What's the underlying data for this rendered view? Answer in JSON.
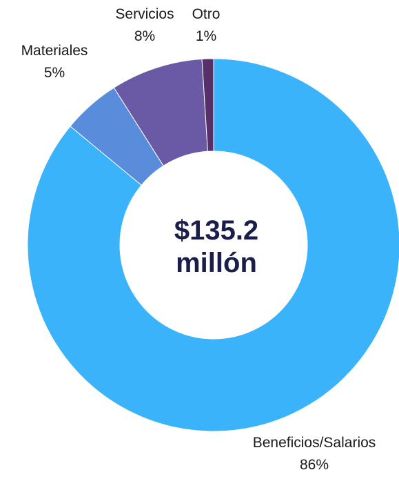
{
  "chart_data": {
    "type": "pie",
    "donut": true,
    "center_label": [
      "$135.2",
      "millón"
    ],
    "slices": [
      {
        "label": "Beneficios/Salarios",
        "percent_label": "86%",
        "value": 86,
        "color": "#3bb3fb"
      },
      {
        "label": "Materiales",
        "percent_label": "5%",
        "value": 5,
        "color": "#5a8cdc"
      },
      {
        "label": "Servicios",
        "percent_label": "8%",
        "value": 8,
        "color": "#6a5aa6"
      },
      {
        "label": "Otro",
        "percent_label": "1%",
        "value": 1,
        "color": "#57306a"
      }
    ]
  }
}
